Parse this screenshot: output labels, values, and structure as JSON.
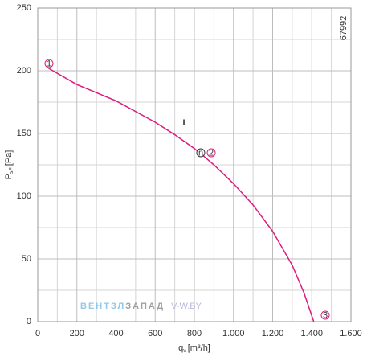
{
  "chart_data": {
    "type": "line",
    "ylabel": {
      "symbol": "P",
      "subscript": "sF",
      "unit": "[Pa]"
    },
    "xlabel": {
      "symbol": "q",
      "subscript": "v",
      "unit": "[m³/h]"
    },
    "id_text": "67992",
    "watermark": [
      "ВЕНТЗЛ",
      "ЗАПАД",
      "V-W.BY"
    ],
    "curve_label": "I",
    "annotations": [
      "1",
      "n",
      "2",
      "3"
    ],
    "x": [
      55,
      200,
      400,
      600,
      700,
      800,
      840,
      900,
      1000,
      1100,
      1200,
      1300,
      1360,
      1410
    ],
    "series": [
      {
        "color": "#e0197d",
        "values": [
          202,
          189,
          176,
          159,
          149,
          138,
          133,
          125,
          110,
          93,
          72,
          45,
          23,
          0
        ]
      }
    ],
    "xlim": [
      0,
      1600
    ],
    "ylim": [
      0,
      250
    ],
    "xticks": [
      0,
      200,
      400,
      600,
      800,
      {
        "value": 1000,
        "label": "1.000"
      },
      {
        "value": 1200,
        "label": "1.200"
      },
      {
        "value": 1400,
        "label": "1.400"
      },
      {
        "value": 1600,
        "label": "1.600"
      }
    ],
    "yticks": [
      0,
      50,
      100,
      150,
      200,
      250
    ],
    "xminor": [
      100,
      300,
      500,
      700,
      900,
      1100,
      1300,
      1500
    ],
    "yminor": [
      25,
      75,
      125,
      175,
      225
    ],
    "grid": true
  }
}
